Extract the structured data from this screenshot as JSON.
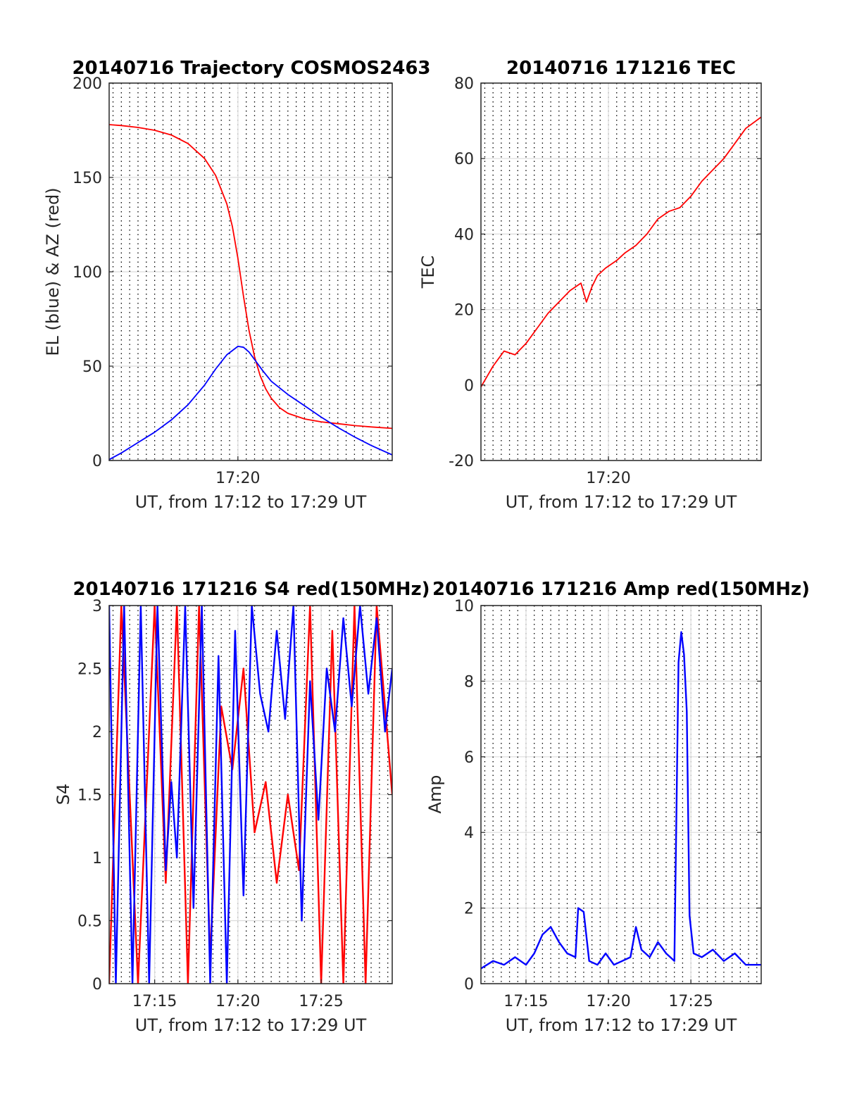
{
  "colors": {
    "red": "#ff0000",
    "blue": "#0000ff",
    "axis": "#262626",
    "grid": "#dcdcdc",
    "minor_grid": "#000000"
  },
  "chart_data": [
    {
      "type": "line",
      "title": "20140716 Trajectory COSMOS2463",
      "xlabel": "UT, from 17:12 to 17:29 UT",
      "ylabel": "EL (blue) & AZ (red)",
      "xlim": [
        "17:12:16",
        "17:29:16"
      ],
      "ylim": [
        0,
        200
      ],
      "yticks": [
        0,
        50,
        100,
        150,
        200
      ],
      "xticks": [
        {
          "t": "17:20",
          "label": "17:20"
        }
      ],
      "grid": true,
      "series": [
        {
          "color": "red",
          "x": [
            "17:12:16",
            "17:13:00",
            "17:14:00",
            "17:15:00",
            "17:16:00",
            "17:17:00",
            "17:18:00",
            "17:18:40",
            "17:19:20",
            "17:19:40",
            "17:20:00",
            "17:20:20",
            "17:20:40",
            "17:21:00",
            "17:21:20",
            "17:21:40",
            "17:22:00",
            "17:22:30",
            "17:23:00",
            "17:24:00",
            "17:25:00",
            "17:26:00",
            "17:27:00",
            "17:28:00",
            "17:29:16"
          ],
          "values": [
            178,
            177.5,
            176.5,
            175,
            172.5,
            168,
            160,
            151,
            136,
            124,
            107,
            87,
            69,
            55,
            45,
            38,
            33,
            28,
            25,
            22,
            20.5,
            19.5,
            18.5,
            17.8,
            17
          ]
        },
        {
          "color": "blue",
          "x": [
            "17:12:16",
            "17:13:00",
            "17:14:00",
            "17:15:00",
            "17:16:00",
            "17:17:00",
            "17:18:00",
            "17:18:40",
            "17:19:20",
            "17:20:00",
            "17:20:20",
            "17:20:40",
            "17:21:00",
            "17:21:30",
            "17:22:00",
            "17:23:00",
            "17:24:00",
            "17:25:00",
            "17:26:00",
            "17:27:00",
            "17:28:00",
            "17:29:16"
          ],
          "values": [
            0.5,
            4,
            9.5,
            15,
            21.5,
            29.5,
            40,
            48.5,
            56,
            60.5,
            60,
            57.5,
            53.5,
            47.5,
            42,
            35,
            29,
            23,
            17.5,
            12.5,
            8,
            3
          ]
        }
      ]
    },
    {
      "type": "line",
      "title": "20140716 171216 TEC",
      "xlabel": "UT, from 17:12 to 17:29 UT",
      "ylabel": "TEC",
      "xlim": [
        "17:12:16",
        "17:29:16"
      ],
      "ylim": [
        -20,
        80
      ],
      "yticks": [
        -20,
        0,
        20,
        40,
        60,
        80
      ],
      "xticks": [
        {
          "t": "17:20",
          "label": "17:20"
        }
      ],
      "grid": true,
      "series": [
        {
          "color": "red",
          "x": [
            "17:12:16",
            "17:13:00",
            "17:13:40",
            "17:14:20",
            "17:15:00",
            "17:15:40",
            "17:16:20",
            "17:17:00",
            "17:17:40",
            "17:18:20",
            "17:18:40",
            "17:19:00",
            "17:19:20",
            "17:19:50",
            "17:20:30",
            "17:21:00",
            "17:21:40",
            "17:22:20",
            "17:23:00",
            "17:23:40",
            "17:24:20",
            "17:25:00",
            "17:25:40",
            "17:26:20",
            "17:27:00",
            "17:27:40",
            "17:28:20",
            "17:29:16"
          ],
          "values": [
            -0.5,
            5,
            9,
            8,
            11,
            15,
            19,
            22,
            25,
            27,
            22,
            26,
            29,
            31,
            33,
            35,
            37,
            40,
            44,
            46,
            47,
            50,
            54,
            57,
            60,
            64,
            68,
            71
          ]
        }
      ]
    },
    {
      "type": "line",
      "title": "20140716 171216 S4 red(150MHz)",
      "xlabel": "UT, from 17:12 to 17:29 UT",
      "ylabel": "S4",
      "xlim": [
        "17:12:16",
        "17:29:16"
      ],
      "ylim": [
        0,
        3
      ],
      "yticks": [
        0,
        0.5,
        1,
        1.5,
        2,
        2.5,
        3
      ],
      "xticks": [
        {
          "t": "17:15",
          "label": "17:15"
        },
        {
          "t": "17:20",
          "label": "17:20"
        },
        {
          "t": "17:25",
          "label": "17:25"
        }
      ],
      "grid": true,
      "series": [
        {
          "color": "red",
          "x": [
            "17:12:16",
            "17:13:00",
            "17:14:00",
            "17:15:00",
            "17:15:40",
            "17:16:20",
            "17:17:00",
            "17:17:40",
            "17:18:20",
            "17:19:00",
            "17:19:40",
            "17:20:20",
            "17:21:00",
            "17:21:40",
            "17:22:20",
            "17:23:00",
            "17:23:40",
            "17:24:20",
            "17:25:00",
            "17:25:40",
            "17:26:20",
            "17:27:00",
            "17:27:40",
            "17:28:20",
            "17:29:16"
          ],
          "values": [
            0,
            3,
            0,
            3,
            0.8,
            3,
            0,
            3,
            0.2,
            2.2,
            1.7,
            2.5,
            1.2,
            1.6,
            0.8,
            1.5,
            0.9,
            3,
            0,
            2.8,
            0,
            3,
            0,
            3,
            1.5
          ]
        },
        {
          "color": "blue",
          "x": [
            "17:12:16",
            "17:12:40",
            "17:13:10",
            "17:13:40",
            "17:14:10",
            "17:14:40",
            "17:15:10",
            "17:15:40",
            "17:16:00",
            "17:16:20",
            "17:16:50",
            "17:17:20",
            "17:17:50",
            "17:18:20",
            "17:18:50",
            "17:19:20",
            "17:19:50",
            "17:20:20",
            "17:20:50",
            "17:21:20",
            "17:21:50",
            "17:22:20",
            "17:22:50",
            "17:23:20",
            "17:23:50",
            "17:24:20",
            "17:24:50",
            "17:25:20",
            "17:25:50",
            "17:26:20",
            "17:26:50",
            "17:27:20",
            "17:27:50",
            "17:28:20",
            "17:28:50",
            "17:29:16"
          ],
          "values": [
            3,
            0,
            3,
            0,
            3,
            0,
            3,
            0.9,
            1.6,
            1.0,
            3,
            0.6,
            3,
            0,
            2.6,
            0,
            2.8,
            0.7,
            3,
            2.3,
            2.0,
            2.8,
            2.1,
            3,
            0.5,
            2.4,
            1.3,
            2.5,
            2.0,
            2.9,
            2.2,
            3,
            2.3,
            2.9,
            2.0,
            2.5
          ]
        }
      ]
    },
    {
      "type": "line",
      "title": "20140716 171216 Amp red(150MHz)",
      "xlabel": "UT, from 17:12 to 17:29 UT",
      "ylabel": "Amp",
      "xlim": [
        "17:12:16",
        "17:29:16"
      ],
      "ylim": [
        0,
        10
      ],
      "yticks": [
        0,
        2,
        4,
        6,
        8,
        10
      ],
      "xticks": [
        {
          "t": "17:15",
          "label": "17:15"
        },
        {
          "t": "17:20",
          "label": "17:20"
        },
        {
          "t": "17:25",
          "label": "17:25"
        }
      ],
      "grid": true,
      "series": [
        {
          "color": "blue",
          "x": [
            "17:12:16",
            "17:13:00",
            "17:13:40",
            "17:14:20",
            "17:15:00",
            "17:15:30",
            "17:16:00",
            "17:16:30",
            "17:17:00",
            "17:17:30",
            "17:18:00",
            "17:18:10",
            "17:18:30",
            "17:18:50",
            "17:19:20",
            "17:19:50",
            "17:20:20",
            "17:20:50",
            "17:21:20",
            "17:21:40",
            "17:22:00",
            "17:22:30",
            "17:23:00",
            "17:23:30",
            "17:24:00",
            "17:24:15",
            "17:24:25",
            "17:24:35",
            "17:24:45",
            "17:24:55",
            "17:25:10",
            "17:25:40",
            "17:26:20",
            "17:27:00",
            "17:27:40",
            "17:28:20",
            "17:29:16"
          ],
          "values": [
            0.4,
            0.6,
            0.5,
            0.7,
            0.5,
            0.8,
            1.3,
            1.5,
            1.1,
            0.8,
            0.7,
            2.0,
            1.9,
            0.6,
            0.5,
            0.8,
            0.5,
            0.6,
            0.7,
            1.5,
            0.9,
            0.7,
            1.1,
            0.8,
            0.6,
            8.5,
            9.3,
            8.7,
            7.2,
            1.8,
            0.8,
            0.7,
            0.9,
            0.6,
            0.8,
            0.5,
            0.5
          ]
        }
      ]
    }
  ]
}
